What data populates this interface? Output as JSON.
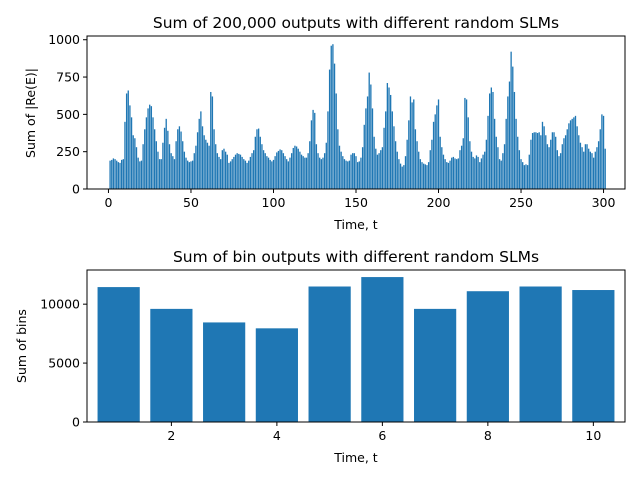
{
  "colors": {
    "bar": "#1f77b4",
    "axis": "#000000",
    "background": "#ffffff"
  },
  "chart_data": [
    {
      "type": "bar",
      "title": "Sum of 200,000 outputs with different random SLMs",
      "xlabel": "Time, t",
      "ylabel": "Sum of |Re(E)|",
      "xlim": [
        -13,
        313
      ],
      "ylim": [
        0,
        1025
      ],
      "xticks": [
        0,
        50,
        100,
        150,
        200,
        250,
        300
      ],
      "yticks": [
        0,
        250,
        500,
        750,
        1000
      ],
      "bar_width": 0.8,
      "x_start": 1,
      "values": [
        190,
        195,
        205,
        200,
        190,
        180,
        175,
        195,
        200,
        450,
        640,
        660,
        560,
        480,
        360,
        340,
        280,
        210,
        185,
        190,
        300,
        400,
        480,
        540,
        565,
        555,
        480,
        400,
        320,
        250,
        200,
        200,
        310,
        410,
        470,
        390,
        300,
        240,
        220,
        200,
        320,
        400,
        420,
        385,
        320,
        250,
        210,
        190,
        180,
        185,
        190,
        240,
        290,
        380,
        470,
        520,
        420,
        360,
        330,
        310,
        290,
        650,
        620,
        400,
        300,
        240,
        215,
        200,
        260,
        270,
        250,
        230,
        175,
        185,
        200,
        215,
        230,
        240,
        235,
        230,
        215,
        200,
        190,
        175,
        190,
        215,
        240,
        260,
        350,
        400,
        405,
        350,
        300,
        260,
        240,
        220,
        210,
        195,
        185,
        195,
        220,
        245,
        255,
        265,
        260,
        240,
        220,
        200,
        185,
        210,
        240,
        275,
        290,
        285,
        270,
        250,
        230,
        220,
        210,
        210,
        240,
        320,
        460,
        530,
        510,
        300,
        240,
        210,
        200,
        210,
        240,
        310,
        520,
        800,
        960,
        970,
        840,
        640,
        400,
        290,
        250,
        220,
        200,
        190,
        185,
        190,
        230,
        240,
        240,
        220,
        180,
        185,
        210,
        280,
        430,
        540,
        620,
        780,
        700,
        540,
        350,
        270,
        230,
        240,
        260,
        280,
        410,
        520,
        710,
        680,
        630,
        520,
        420,
        320,
        250,
        200,
        170,
        150,
        160,
        220,
        330,
        460,
        620,
        580,
        600,
        400,
        320,
        250,
        200,
        180,
        170,
        165,
        160,
        180,
        260,
        330,
        450,
        500,
        560,
        600,
        350,
        280,
        230,
        200,
        180,
        175,
        190,
        210,
        215,
        205,
        200,
        205,
        260,
        290,
        340,
        610,
        600,
        480,
        320,
        250,
        215,
        205,
        225,
        215,
        180,
        205,
        230,
        250,
        330,
        490,
        640,
        680,
        650,
        470,
        350,
        280,
        200,
        190,
        240,
        300,
        470,
        620,
        720,
        920,
        820,
        650,
        470,
        350,
        260,
        200,
        180,
        160,
        165,
        160,
        230,
        330,
        375,
        380,
        380,
        375,
        380,
        360,
        450,
        420,
        360,
        300,
        280,
        330,
        380,
        380,
        350,
        260,
        220,
        240,
        300,
        340,
        360,
        400,
        440,
        460,
        470,
        480,
        490,
        420,
        360,
        310,
        280,
        250,
        300,
        300,
        270,
        250,
        240,
        210,
        250,
        280,
        320,
        400,
        500,
        490,
        270
      ]
    },
    {
      "type": "bar",
      "title": "Sum of bin outputs with different random SLMs",
      "xlabel": "Time, t",
      "ylabel": "Sum of bins",
      "xlim": [
        0.4,
        10.6
      ],
      "ylim": [
        0,
        12900
      ],
      "xticks": [
        2,
        4,
        6,
        8,
        10
      ],
      "yticks": [
        0,
        5000,
        10000
      ],
      "bar_width": 0.8,
      "categories": [
        1,
        2,
        3,
        4,
        5,
        6,
        7,
        8,
        9,
        10
      ],
      "values": [
        11450,
        9600,
        8450,
        7950,
        11500,
        12300,
        9600,
        11100,
        11500,
        11200
      ]
    }
  ]
}
